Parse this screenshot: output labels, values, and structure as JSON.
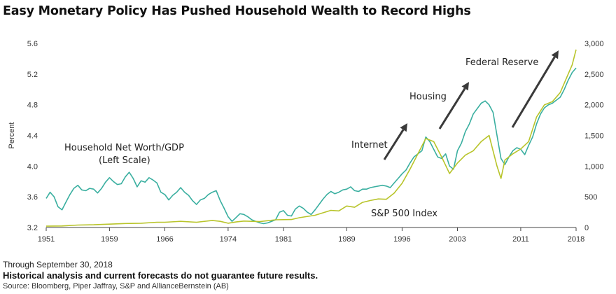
{
  "header": {
    "title": "Easy Monetary Policy Has Pushed Household Wealth to Record Highs"
  },
  "footer": {
    "as_of": "Through September 30, 2018",
    "disclaimer": "Historical analysis and current forecasts do not guarantee future results.",
    "source": "Source: Bloomberg, Piper Jaffray, S&P and AllianceBernstein (AB)"
  },
  "colors": {
    "net_worth": "#3aafa0",
    "sp500": "#b8c42a",
    "arrow": "#3a3a3a",
    "axis": "#444444"
  },
  "annotations": {
    "net_worth_line1": "Household Net Worth/GDP",
    "net_worth_line2": "(Left Scale)",
    "sp500": "S&P 500 Index",
    "internet": "Internet",
    "housing": "Housing",
    "fed": "Federal Reserve"
  },
  "chart_data": {
    "type": "line",
    "title": "Easy Monetary Policy Has Pushed Household Wealth to Record Highs",
    "xlabel": "",
    "ylabel": "Percent",
    "xlim": [
      1951,
      2018
    ],
    "ylim": [
      3.2,
      5.6
    ],
    "y2lim": [
      0,
      3000
    ],
    "x_ticks": [
      "1951",
      "1959",
      "1966",
      "1974",
      "1981",
      "1989",
      "1996",
      "2003",
      "2011",
      "2018"
    ],
    "y_ticks": [
      "3.2",
      "3.6",
      "4.0",
      "4.4",
      "4.8",
      "5.2",
      "5.6"
    ],
    "y2_ticks": [
      "0",
      "500",
      "1,000",
      "1,500",
      "2,000",
      "2,500",
      "3,000"
    ],
    "grid": false,
    "series": [
      {
        "name": "Household Net Worth/GDP",
        "axis": "left",
        "points": [
          [
            1951,
            3.58
          ],
          [
            1951.5,
            3.66
          ],
          [
            1952,
            3.6
          ],
          [
            1952.5,
            3.47
          ],
          [
            1953,
            3.43
          ],
          [
            1953.5,
            3.53
          ],
          [
            1954,
            3.63
          ],
          [
            1954.5,
            3.71
          ],
          [
            1955,
            3.75
          ],
          [
            1955.5,
            3.69
          ],
          [
            1956,
            3.68
          ],
          [
            1956.5,
            3.71
          ],
          [
            1957,
            3.7
          ],
          [
            1957.5,
            3.65
          ],
          [
            1958,
            3.71
          ],
          [
            1958.5,
            3.79
          ],
          [
            1959,
            3.85
          ],
          [
            1959.5,
            3.8
          ],
          [
            1960,
            3.76
          ],
          [
            1960.5,
            3.77
          ],
          [
            1961,
            3.86
          ],
          [
            1961.5,
            3.92
          ],
          [
            1962,
            3.84
          ],
          [
            1962.5,
            3.73
          ],
          [
            1963,
            3.81
          ],
          [
            1963.5,
            3.79
          ],
          [
            1964,
            3.85
          ],
          [
            1964.5,
            3.82
          ],
          [
            1965,
            3.78
          ],
          [
            1965.5,
            3.66
          ],
          [
            1966,
            3.63
          ],
          [
            1966.5,
            3.56
          ],
          [
            1967,
            3.62
          ],
          [
            1967.5,
            3.66
          ],
          [
            1968,
            3.72
          ],
          [
            1968.5,
            3.66
          ],
          [
            1969,
            3.62
          ],
          [
            1969.5,
            3.55
          ],
          [
            1970,
            3.5
          ],
          [
            1970.5,
            3.56
          ],
          [
            1971,
            3.58
          ],
          [
            1971.5,
            3.63
          ],
          [
            1972,
            3.66
          ],
          [
            1972.5,
            3.68
          ],
          [
            1973,
            3.55
          ],
          [
            1973.5,
            3.45
          ],
          [
            1974,
            3.34
          ],
          [
            1974.5,
            3.28
          ],
          [
            1975,
            3.33
          ],
          [
            1975.5,
            3.38
          ],
          [
            1976,
            3.37
          ],
          [
            1976.5,
            3.34
          ],
          [
            1977,
            3.3
          ],
          [
            1977.5,
            3.28
          ],
          [
            1978,
            3.26
          ],
          [
            1978.5,
            3.25
          ],
          [
            1979,
            3.26
          ],
          [
            1979.5,
            3.28
          ],
          [
            1980,
            3.3
          ],
          [
            1980.5,
            3.4
          ],
          [
            1981,
            3.42
          ],
          [
            1981.5,
            3.36
          ],
          [
            1982,
            3.35
          ],
          [
            1982.5,
            3.44
          ],
          [
            1983,
            3.48
          ],
          [
            1983.5,
            3.45
          ],
          [
            1984,
            3.4
          ],
          [
            1984.5,
            3.37
          ],
          [
            1985,
            3.43
          ],
          [
            1985.5,
            3.5
          ],
          [
            1986,
            3.57
          ],
          [
            1986.5,
            3.63
          ],
          [
            1987,
            3.67
          ],
          [
            1987.5,
            3.64
          ],
          [
            1988,
            3.66
          ],
          [
            1988.5,
            3.69
          ],
          [
            1989,
            3.7
          ],
          [
            1989.5,
            3.73
          ],
          [
            1990,
            3.68
          ],
          [
            1990.5,
            3.67
          ],
          [
            1991,
            3.7
          ],
          [
            1991.5,
            3.7
          ],
          [
            1992,
            3.72
          ],
          [
            1992.5,
            3.73
          ],
          [
            1993,
            3.74
          ],
          [
            1993.5,
            3.75
          ],
          [
            1994,
            3.74
          ],
          [
            1994.5,
            3.72
          ],
          [
            1995,
            3.78
          ],
          [
            1995.5,
            3.84
          ],
          [
            1996,
            3.9
          ],
          [
            1996.5,
            3.95
          ],
          [
            1997,
            4.04
          ],
          [
            1997.5,
            4.12
          ],
          [
            1998,
            4.16
          ],
          [
            1998.5,
            4.2
          ],
          [
            1999,
            4.38
          ],
          [
            1999.5,
            4.32
          ],
          [
            2000,
            4.22
          ],
          [
            2000.5,
            4.12
          ],
          [
            2001,
            4.1
          ],
          [
            2001.5,
            4.16
          ],
          [
            2002,
            4.0
          ],
          [
            2002.5,
            3.96
          ],
          [
            2003,
            4.2
          ],
          [
            2003.5,
            4.3
          ],
          [
            2004,
            4.45
          ],
          [
            2004.5,
            4.55
          ],
          [
            2005,
            4.68
          ],
          [
            2005.5,
            4.75
          ],
          [
            2006,
            4.82
          ],
          [
            2006.5,
            4.85
          ],
          [
            2007,
            4.8
          ],
          [
            2007.5,
            4.7
          ],
          [
            2008,
            4.4
          ],
          [
            2008.5,
            4.1
          ],
          [
            2009,
            4.02
          ],
          [
            2009.5,
            4.12
          ],
          [
            2010,
            4.2
          ],
          [
            2010.5,
            4.24
          ],
          [
            2011,
            4.22
          ],
          [
            2011.5,
            4.15
          ],
          [
            2012,
            4.27
          ],
          [
            2012.5,
            4.38
          ],
          [
            2013,
            4.55
          ],
          [
            2013.5,
            4.68
          ],
          [
            2014,
            4.76
          ],
          [
            2014.5,
            4.8
          ],
          [
            2015,
            4.82
          ],
          [
            2015.5,
            4.86
          ],
          [
            2016,
            4.9
          ],
          [
            2016.5,
            5.0
          ],
          [
            2017,
            5.12
          ],
          [
            2017.5,
            5.22
          ],
          [
            2018,
            5.28
          ]
        ]
      },
      {
        "name": "S&P 500 Index",
        "axis": "right",
        "points": [
          [
            1951,
            22
          ],
          [
            1953,
            25
          ],
          [
            1955,
            40
          ],
          [
            1957,
            45
          ],
          [
            1959,
            55
          ],
          [
            1961,
            65
          ],
          [
            1963,
            70
          ],
          [
            1965,
            85
          ],
          [
            1966,
            86
          ],
          [
            1968,
            100
          ],
          [
            1970,
            85
          ],
          [
            1972,
            115
          ],
          [
            1973,
            100
          ],
          [
            1974,
            70
          ],
          [
            1975,
            90
          ],
          [
            1976,
            105
          ],
          [
            1978,
            96
          ],
          [
            1980,
            125
          ],
          [
            1982,
            130
          ],
          [
            1983,
            160
          ],
          [
            1985,
            200
          ],
          [
            1987,
            280
          ],
          [
            1988,
            270
          ],
          [
            1989,
            350
          ],
          [
            1990,
            330
          ],
          [
            1991,
            410
          ],
          [
            1992,
            440
          ],
          [
            1993,
            465
          ],
          [
            1994,
            460
          ],
          [
            1995,
            560
          ],
          [
            1996,
            720
          ],
          [
            1997,
            950
          ],
          [
            1998,
            1200
          ],
          [
            1999,
            1450
          ],
          [
            2000,
            1400
          ],
          [
            2001,
            1150
          ],
          [
            2002,
            880
          ],
          [
            2003,
            1050
          ],
          [
            2004,
            1180
          ],
          [
            2005,
            1250
          ],
          [
            2006,
            1400
          ],
          [
            2007,
            1500
          ],
          [
            2008,
            1000
          ],
          [
            2008.5,
            800
          ],
          [
            2009,
            1100
          ],
          [
            2010,
            1200
          ],
          [
            2011,
            1280
          ],
          [
            2012,
            1400
          ],
          [
            2013,
            1800
          ],
          [
            2014,
            2000
          ],
          [
            2015,
            2050
          ],
          [
            2016,
            2200
          ],
          [
            2017,
            2500
          ],
          [
            2017.5,
            2650
          ],
          [
            2018,
            2900
          ]
        ]
      }
    ]
  }
}
